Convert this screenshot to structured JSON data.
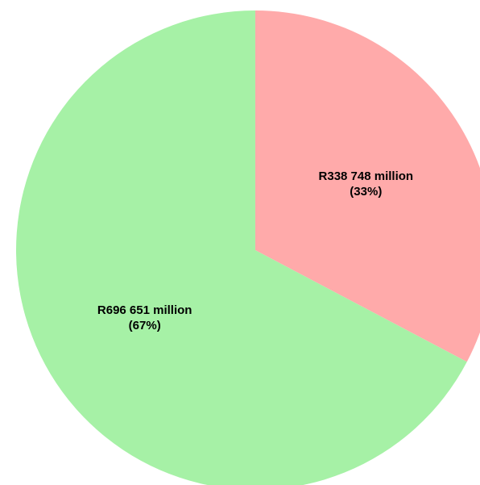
{
  "chart_data": {
    "type": "pie",
    "title": "",
    "slices": [
      {
        "value": 338748,
        "label": "R338 748 million",
        "percent_label": "(33%)",
        "color": "#ffaaaa"
      },
      {
        "value": 696651,
        "label": "R696 651 million",
        "percent_label": "(67%)",
        "color": "#a6f1a6"
      }
    ],
    "start_angle": "top",
    "direction": "clockwise",
    "legend": "none"
  }
}
